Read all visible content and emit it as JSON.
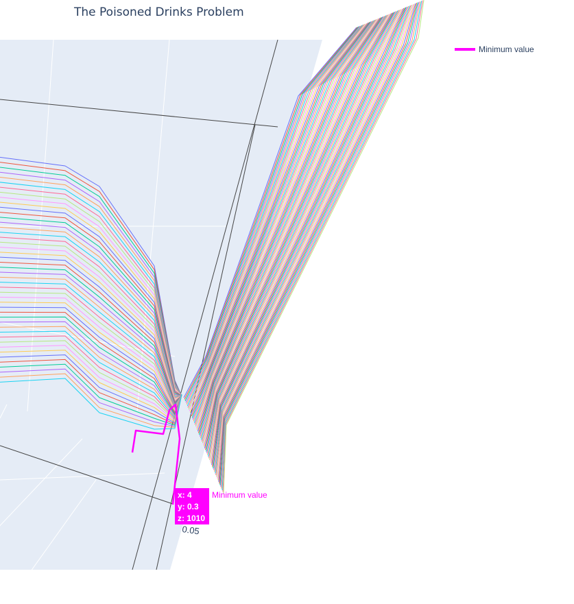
{
  "chart_data": {
    "type": "line",
    "title": "The Poisoned Drinks Problem",
    "legend": {
      "entries": [
        "Minimum value"
      ],
      "position": "top-right"
    },
    "colors": {
      "minimum": "#ff00ff",
      "scene_background": "#e5ecf6",
      "axis_line": "#444444",
      "text": "#2a3f5f",
      "palette": [
        "#636efa",
        "#ef553b",
        "#00cc96",
        "#ab63fa",
        "#ffa15a",
        "#19d3f3",
        "#ff6692",
        "#b6e880",
        "#ff97ff",
        "#fecb52"
      ]
    },
    "visible_tick_labels": [
      "0.05"
    ],
    "minimum": {
      "x": 4,
      "y": 0.3,
      "z": 1010
    },
    "hover": {
      "x_line": "x: 4",
      "y_line": "y: 0.3",
      "z_line": "z: 1010",
      "name": "Minimum value"
    }
  }
}
